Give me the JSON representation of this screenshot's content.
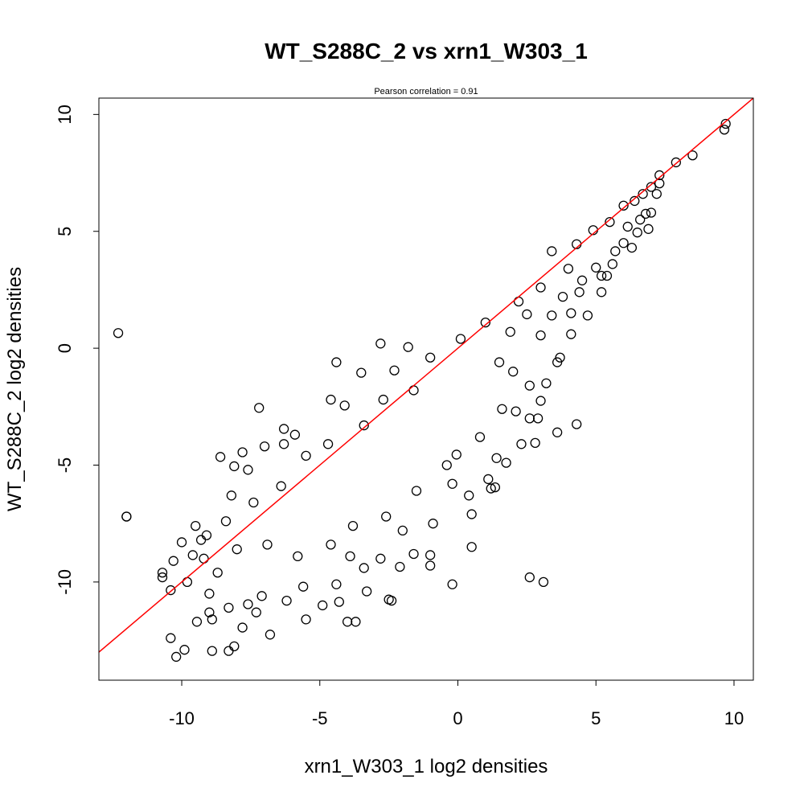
{
  "chart_data": {
    "type": "scatter",
    "title": "WT_S288C_2 vs xrn1_W303_1",
    "subtitle": "Pearson correlation =  0.91",
    "xlabel": "xrn1_W303_1 log2 densities",
    "ylabel": "WT_S288C_2 log2 densities",
    "xlim": [
      -13,
      10.7
    ],
    "ylim": [
      -14.2,
      10.7
    ],
    "x_ticks": [
      -10,
      -5,
      0,
      5,
      10
    ],
    "y_ticks": [
      -10,
      -5,
      0,
      5,
      10
    ],
    "grid": false,
    "legend": "none",
    "point_color": "#000000",
    "line_color": "#ff0000",
    "fit_line": {
      "slope": 1,
      "intercept": 0,
      "color": "#ff0000"
    },
    "series": [
      {
        "points": [
          [
            -12.3,
            0.65
          ],
          [
            -12.0,
            -7.2
          ],
          [
            9.7,
            9.6
          ],
          [
            9.65,
            9.35
          ],
          [
            8.5,
            8.25
          ],
          [
            7.9,
            7.95
          ],
          [
            7.3,
            7.4
          ],
          [
            7.3,
            7.05
          ],
          [
            7.0,
            6.9
          ],
          [
            6.7,
            6.6
          ],
          [
            6.4,
            6.3
          ],
          [
            6.0,
            6.1
          ],
          [
            6.8,
            5.75
          ],
          [
            6.15,
            5.2
          ],
          [
            5.5,
            5.4
          ],
          [
            4.9,
            5.05
          ],
          [
            4.3,
            4.45
          ],
          [
            3.4,
            4.15
          ],
          [
            5.2,
            3.1
          ],
          [
            4.4,
            2.4
          ],
          [
            3.4,
            1.4
          ],
          [
            3.0,
            0.55
          ],
          [
            -2.8,
            0.2
          ],
          [
            1.9,
            0.7
          ],
          [
            -4.4,
            -0.6
          ],
          [
            -4.1,
            -2.45
          ],
          [
            -7.2,
            -2.55
          ],
          [
            -6.3,
            -3.45
          ],
          [
            -6.3,
            -4.1
          ],
          [
            -7.8,
            -4.45
          ],
          [
            -8.6,
            -4.65
          ],
          [
            -8.1,
            -5.05
          ],
          [
            4.3,
            -3.25
          ],
          [
            3.6,
            -3.6
          ],
          [
            2.9,
            -3.0
          ],
          [
            2.6,
            -3.0
          ],
          [
            2.8,
            -4.05
          ],
          [
            1.4,
            -4.7
          ],
          [
            1.35,
            -5.95
          ],
          [
            0.5,
            -7.1
          ],
          [
            0.5,
            -8.5
          ],
          [
            2.6,
            -9.8
          ],
          [
            3.1,
            -10.0
          ],
          [
            -0.2,
            -10.1
          ],
          [
            -1.0,
            -9.3
          ],
          [
            -1.0,
            -8.85
          ],
          [
            -3.3,
            -10.4
          ],
          [
            -3.7,
            -11.7
          ],
          [
            -4.0,
            -11.7
          ],
          [
            -2.4,
            -10.8
          ],
          [
            -6.8,
            -12.25
          ],
          [
            -7.8,
            -11.95
          ],
          [
            -8.1,
            -12.75
          ],
          [
            -8.3,
            -12.95
          ],
          [
            -8.9,
            -12.95
          ],
          [
            -10.4,
            -12.4
          ],
          [
            -10.2,
            -13.2
          ],
          [
            -9.9,
            -12.9
          ],
          [
            -10.4,
            -10.35
          ],
          [
            -10.7,
            -9.6
          ],
          [
            -10.7,
            -9.8
          ],
          [
            -10.3,
            -9.1
          ],
          [
            -10.0,
            -8.3
          ],
          [
            -9.6,
            -8.85
          ],
          [
            -9.2,
            -9.0
          ],
          [
            -9.45,
            -11.7
          ],
          [
            -9.0,
            -11.3
          ],
          [
            -8.9,
            -11.6
          ],
          [
            -12.0,
            -7.2
          ],
          [
            -7.3,
            -11.3
          ],
          [
            -7.6,
            -10.95
          ],
          [
            -5.5,
            -11.6
          ],
          [
            -4.9,
            -11.0
          ],
          [
            -4.3,
            -10.85
          ],
          [
            -4.4,
            -10.1
          ],
          [
            -3.9,
            -8.9
          ],
          [
            -2.5,
            -10.75
          ],
          [
            -2.1,
            -9.35
          ],
          [
            -1.6,
            -8.8
          ],
          [
            -0.2,
            -5.8
          ],
          [
            -0.05,
            -4.55
          ],
          [
            1.2,
            -6.0
          ],
          [
            1.75,
            -4.9
          ],
          [
            3.0,
            -2.25
          ],
          [
            2.0,
            -1.0
          ],
          [
            1.5,
            -0.6
          ],
          [
            4.1,
            1.5
          ],
          [
            4.5,
            2.9
          ],
          [
            5.4,
            3.1
          ],
          [
            6.0,
            4.5
          ],
          [
            6.3,
            4.3
          ],
          [
            6.9,
            5.1
          ],
          [
            7.0,
            5.8
          ],
          [
            6.5,
            4.95
          ],
          [
            5.7,
            4.15
          ],
          [
            5.0,
            3.45
          ],
          [
            3.8,
            2.2
          ],
          [
            2.5,
            1.45
          ],
          [
            -1.8,
            0.05
          ],
          [
            -2.3,
            -0.95
          ],
          [
            -3.5,
            -1.05
          ],
          [
            -4.6,
            -2.2
          ],
          [
            -5.9,
            -3.7
          ],
          [
            -7.0,
            -4.2
          ],
          [
            -7.6,
            -5.2
          ],
          [
            -8.2,
            -6.3
          ],
          [
            -9.5,
            -7.6
          ],
          [
            -9.3,
            -8.2
          ],
          [
            -8.7,
            -9.6
          ],
          [
            -9.8,
            -10.0
          ],
          [
            -9.0,
            -10.5
          ],
          [
            -8.3,
            -11.1
          ],
          [
            -7.1,
            -10.6
          ],
          [
            -6.2,
            -10.8
          ],
          [
            -5.6,
            -10.2
          ],
          [
            -3.4,
            -9.4
          ],
          [
            -2.8,
            -9.0
          ],
          [
            -2.0,
            -7.8
          ],
          [
            -0.9,
            -7.5
          ],
          [
            0.4,
            -6.3
          ],
          [
            1.1,
            -5.6
          ],
          [
            2.3,
            -4.1
          ],
          [
            2.1,
            -2.7
          ],
          [
            3.2,
            -1.5
          ],
          [
            3.7,
            -0.4
          ],
          [
            4.7,
            1.4
          ],
          [
            5.2,
            2.4
          ],
          [
            4.0,
            3.4
          ],
          [
            3.0,
            2.6
          ],
          [
            2.2,
            2.0
          ],
          [
            1.0,
            1.1
          ],
          [
            0.1,
            0.4
          ],
          [
            -1.0,
            -0.4
          ],
          [
            -1.6,
            -1.8
          ],
          [
            -2.7,
            -2.2
          ],
          [
            -3.4,
            -3.3
          ],
          [
            -4.7,
            -4.1
          ],
          [
            -5.5,
            -4.6
          ],
          [
            -6.4,
            -5.9
          ],
          [
            -7.4,
            -6.6
          ],
          [
            -8.4,
            -7.4
          ],
          [
            -9.1,
            -8.0
          ],
          [
            -8.0,
            -8.6
          ],
          [
            -6.9,
            -8.4
          ],
          [
            -5.8,
            -8.9
          ],
          [
            -4.6,
            -8.4
          ],
          [
            -3.8,
            -7.6
          ],
          [
            -2.6,
            -7.2
          ],
          [
            -1.5,
            -6.1
          ],
          [
            -0.4,
            -5.0
          ],
          [
            0.8,
            -3.8
          ],
          [
            1.6,
            -2.6
          ],
          [
            2.6,
            -1.6
          ],
          [
            3.6,
            -0.6
          ],
          [
            4.1,
            0.6
          ],
          [
            5.6,
            3.6
          ],
          [
            6.6,
            5.5
          ],
          [
            7.2,
            6.6
          ]
        ]
      }
    ]
  }
}
